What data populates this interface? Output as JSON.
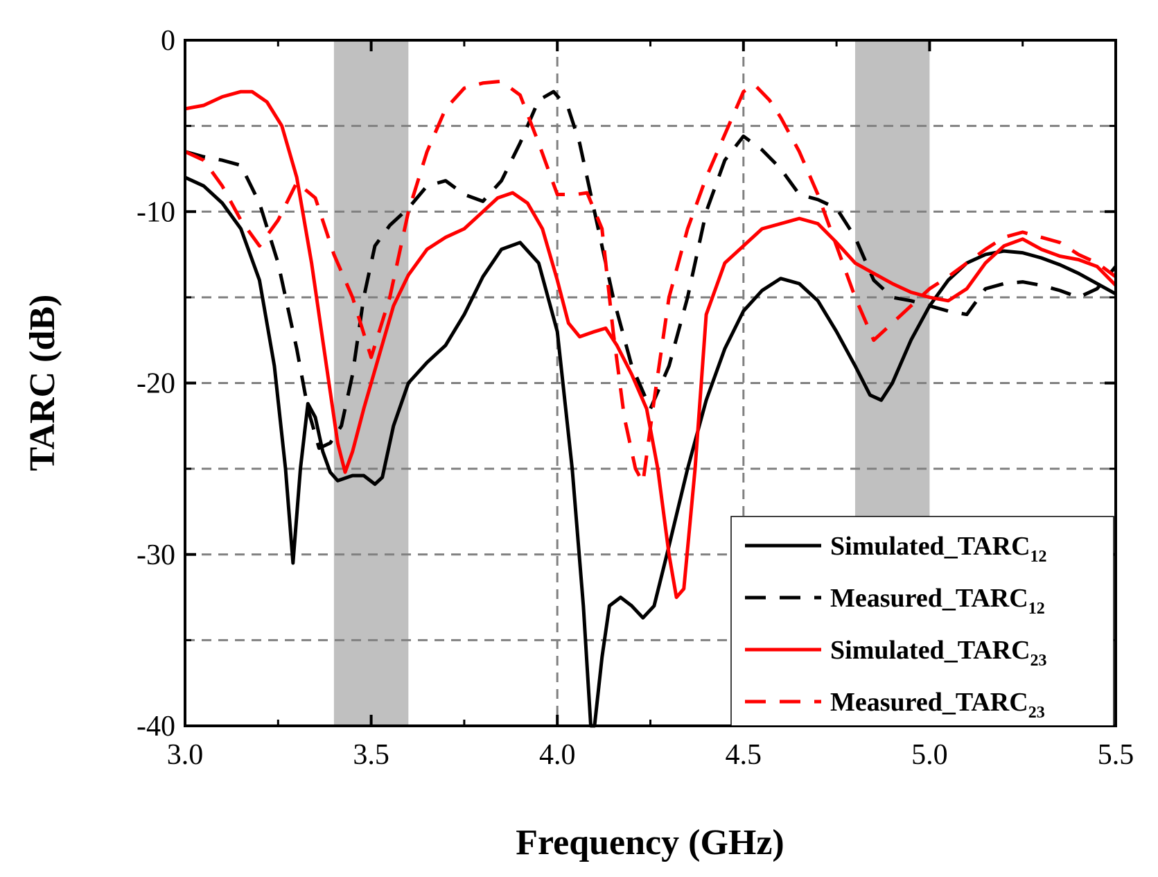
{
  "chart_data": {
    "type": "line",
    "title": "",
    "xlabel": "Frequency (GHz)",
    "ylabel": "TARC (dB)",
    "xlim": [
      3.0,
      5.5
    ],
    "ylim": [
      -40,
      0
    ],
    "x_ticks": [
      3.0,
      3.5,
      4.0,
      4.5,
      5.0,
      5.5
    ],
    "x_tick_labels": [
      "3.0",
      "3.5",
      "4.0",
      "4.5",
      "5.0",
      "5.5"
    ],
    "y_ticks": [
      0,
      -10,
      -20,
      -30,
      -40
    ],
    "y_tick_labels": [
      "0",
      "-10",
      "-20",
      "-30",
      "-40"
    ],
    "grid": "dashed",
    "shaded_bands": [
      [
        3.4,
        3.6
      ],
      [
        4.8,
        5.0
      ]
    ],
    "legend_position": "bottom-right",
    "series": [
      {
        "name": "Simulated_TARC",
        "subscript": "12",
        "color": "#000000",
        "dash": "solid",
        "points": [
          [
            3.0,
            -8
          ],
          [
            3.05,
            -8.5
          ],
          [
            3.1,
            -9.5
          ],
          [
            3.15,
            -11
          ],
          [
            3.2,
            -14
          ],
          [
            3.24,
            -19
          ],
          [
            3.27,
            -25
          ],
          [
            3.29,
            -30.5
          ],
          [
            3.31,
            -25
          ],
          [
            3.33,
            -21.2
          ],
          [
            3.35,
            -22
          ],
          [
            3.37,
            -24
          ],
          [
            3.39,
            -25.2
          ],
          [
            3.41,
            -25.7
          ],
          [
            3.45,
            -25.4
          ],
          [
            3.48,
            -25.4
          ],
          [
            3.51,
            -25.9
          ],
          [
            3.53,
            -25.5
          ],
          [
            3.56,
            -22.5
          ],
          [
            3.6,
            -20
          ],
          [
            3.65,
            -18.8
          ],
          [
            3.7,
            -17.8
          ],
          [
            3.75,
            -16
          ],
          [
            3.8,
            -13.8
          ],
          [
            3.85,
            -12.2
          ],
          [
            3.9,
            -11.8
          ],
          [
            3.95,
            -13
          ],
          [
            4.0,
            -17
          ],
          [
            4.04,
            -25
          ],
          [
            4.07,
            -33
          ],
          [
            4.09,
            -40
          ],
          [
            4.1,
            -40
          ],
          [
            4.12,
            -36
          ],
          [
            4.14,
            -33
          ],
          [
            4.17,
            -32.5
          ],
          [
            4.2,
            -33
          ],
          [
            4.23,
            -33.7
          ],
          [
            4.26,
            -33
          ],
          [
            4.3,
            -29.5
          ],
          [
            4.35,
            -25
          ],
          [
            4.4,
            -21
          ],
          [
            4.45,
            -18
          ],
          [
            4.5,
            -15.8
          ],
          [
            4.55,
            -14.6
          ],
          [
            4.6,
            -13.9
          ],
          [
            4.65,
            -14.2
          ],
          [
            4.7,
            -15.2
          ],
          [
            4.75,
            -17
          ],
          [
            4.8,
            -19
          ],
          [
            4.84,
            -20.7
          ],
          [
            4.87,
            -21
          ],
          [
            4.9,
            -20
          ],
          [
            4.95,
            -17.5
          ],
          [
            5.0,
            -15.5
          ],
          [
            5.05,
            -14
          ],
          [
            5.1,
            -13
          ],
          [
            5.15,
            -12.5
          ],
          [
            5.2,
            -12.3
          ],
          [
            5.25,
            -12.4
          ],
          [
            5.3,
            -12.7
          ],
          [
            5.35,
            -13.1
          ],
          [
            5.4,
            -13.6
          ],
          [
            5.45,
            -14.2
          ],
          [
            5.5,
            -14.8
          ]
        ]
      },
      {
        "name": "Measured_TARC",
        "subscript": "12",
        "color": "#000000",
        "dash": "dashed",
        "points": [
          [
            3.0,
            -6.5
          ],
          [
            3.05,
            -6.8
          ],
          [
            3.1,
            -7
          ],
          [
            3.15,
            -7.3
          ],
          [
            3.2,
            -9.5
          ],
          [
            3.25,
            -13
          ],
          [
            3.3,
            -18
          ],
          [
            3.33,
            -21.5
          ],
          [
            3.36,
            -23.8
          ],
          [
            3.39,
            -23.5
          ],
          [
            3.42,
            -22.5
          ],
          [
            3.45,
            -19.5
          ],
          [
            3.48,
            -15
          ],
          [
            3.51,
            -12
          ],
          [
            3.55,
            -10.8
          ],
          [
            3.6,
            -9.8
          ],
          [
            3.65,
            -8.5
          ],
          [
            3.7,
            -8.2
          ],
          [
            3.75,
            -9
          ],
          [
            3.8,
            -9.4
          ],
          [
            3.85,
            -8.2
          ],
          [
            3.9,
            -6
          ],
          [
            3.95,
            -3.5
          ],
          [
            3.99,
            -3
          ],
          [
            4.03,
            -4
          ],
          [
            4.06,
            -6
          ],
          [
            4.1,
            -10
          ],
          [
            4.15,
            -15
          ],
          [
            4.2,
            -19
          ],
          [
            4.25,
            -21.5
          ],
          [
            4.3,
            -19
          ],
          [
            4.35,
            -15
          ],
          [
            4.4,
            -10
          ],
          [
            4.45,
            -7
          ],
          [
            4.5,
            -5.6
          ],
          [
            4.55,
            -6.4
          ],
          [
            4.6,
            -7.5
          ],
          [
            4.65,
            -9
          ],
          [
            4.7,
            -9.3
          ],
          [
            4.75,
            -9.8
          ],
          [
            4.8,
            -11.5
          ],
          [
            4.85,
            -14
          ],
          [
            4.9,
            -15
          ],
          [
            4.95,
            -15.2
          ],
          [
            5.0,
            -15.5
          ],
          [
            5.05,
            -15.8
          ],
          [
            5.1,
            -16
          ],
          [
            5.15,
            -14.5
          ],
          [
            5.2,
            -14.2
          ],
          [
            5.25,
            -14.1
          ],
          [
            5.3,
            -14.3
          ],
          [
            5.35,
            -14.6
          ],
          [
            5.4,
            -15
          ],
          [
            5.45,
            -14.5
          ],
          [
            5.5,
            -13.2
          ]
        ]
      },
      {
        "name": "Simulated_TARC",
        "subscript": "23",
        "color": "#ff0000",
        "dash": "solid",
        "points": [
          [
            3.0,
            -4
          ],
          [
            3.05,
            -3.8
          ],
          [
            3.1,
            -3.3
          ],
          [
            3.15,
            -3
          ],
          [
            3.18,
            -3
          ],
          [
            3.22,
            -3.6
          ],
          [
            3.26,
            -5
          ],
          [
            3.3,
            -8
          ],
          [
            3.34,
            -13
          ],
          [
            3.38,
            -19
          ],
          [
            3.41,
            -23.5
          ],
          [
            3.43,
            -25.2
          ],
          [
            3.45,
            -24
          ],
          [
            3.48,
            -21.5
          ],
          [
            3.52,
            -18.5
          ],
          [
            3.56,
            -15.5
          ],
          [
            3.6,
            -13.7
          ],
          [
            3.65,
            -12.2
          ],
          [
            3.7,
            -11.5
          ],
          [
            3.75,
            -11
          ],
          [
            3.8,
            -10
          ],
          [
            3.84,
            -9.2
          ],
          [
            3.88,
            -8.9
          ],
          [
            3.92,
            -9.5
          ],
          [
            3.96,
            -11
          ],
          [
            4.0,
            -14
          ],
          [
            4.03,
            -16.5
          ],
          [
            4.06,
            -17.3
          ],
          [
            4.1,
            -17
          ],
          [
            4.13,
            -16.8
          ],
          [
            4.16,
            -17.8
          ],
          [
            4.2,
            -19.5
          ],
          [
            4.24,
            -21.5
          ],
          [
            4.27,
            -25
          ],
          [
            4.3,
            -30
          ],
          [
            4.32,
            -32.5
          ],
          [
            4.34,
            -32
          ],
          [
            4.37,
            -25
          ],
          [
            4.4,
            -16
          ],
          [
            4.45,
            -13
          ],
          [
            4.5,
            -12
          ],
          [
            4.55,
            -11
          ],
          [
            4.6,
            -10.7
          ],
          [
            4.65,
            -10.4
          ],
          [
            4.7,
            -10.7
          ],
          [
            4.75,
            -11.8
          ],
          [
            4.8,
            -13
          ],
          [
            4.85,
            -13.6
          ],
          [
            4.9,
            -14.2
          ],
          [
            4.95,
            -14.7
          ],
          [
            5.0,
            -15
          ],
          [
            5.05,
            -15.2
          ],
          [
            5.1,
            -14.5
          ],
          [
            5.15,
            -13
          ],
          [
            5.2,
            -12
          ],
          [
            5.25,
            -11.6
          ],
          [
            5.3,
            -12.2
          ],
          [
            5.35,
            -12.6
          ],
          [
            5.4,
            -12.8
          ],
          [
            5.45,
            -13.2
          ],
          [
            5.5,
            -14.3
          ]
        ]
      },
      {
        "name": "Measured_TARC",
        "subscript": "23",
        "color": "#ff0000",
        "dash": "dashed",
        "points": [
          [
            3.0,
            -6.5
          ],
          [
            3.05,
            -7
          ],
          [
            3.1,
            -8.5
          ],
          [
            3.15,
            -10.5
          ],
          [
            3.2,
            -12
          ],
          [
            3.25,
            -10.5
          ],
          [
            3.3,
            -8.3
          ],
          [
            3.35,
            -9.2
          ],
          [
            3.4,
            -12.5
          ],
          [
            3.45,
            -15
          ],
          [
            3.5,
            -18.5
          ],
          [
            3.55,
            -15
          ],
          [
            3.6,
            -10
          ],
          [
            3.65,
            -6.5
          ],
          [
            3.7,
            -4
          ],
          [
            3.75,
            -2.8
          ],
          [
            3.8,
            -2.5
          ],
          [
            3.85,
            -2.4
          ],
          [
            3.9,
            -3.2
          ],
          [
            3.95,
            -6
          ],
          [
            4.0,
            -9
          ],
          [
            4.05,
            -9
          ],
          [
            4.08,
            -8.9
          ],
          [
            4.12,
            -11
          ],
          [
            4.15,
            -17
          ],
          [
            4.18,
            -22
          ],
          [
            4.21,
            -25
          ],
          [
            4.23,
            -25.8
          ],
          [
            4.26,
            -21
          ],
          [
            4.3,
            -15
          ],
          [
            4.35,
            -11
          ],
          [
            4.4,
            -8
          ],
          [
            4.45,
            -5.5
          ],
          [
            4.5,
            -3
          ],
          [
            4.53,
            -2.6
          ],
          [
            4.57,
            -3.5
          ],
          [
            4.6,
            -4.5
          ],
          [
            4.65,
            -6.5
          ],
          [
            4.7,
            -9
          ],
          [
            4.75,
            -12
          ],
          [
            4.8,
            -15
          ],
          [
            4.85,
            -17.5
          ],
          [
            4.9,
            -16.5
          ],
          [
            4.95,
            -15.5
          ],
          [
            5.0,
            -14.5
          ],
          [
            5.05,
            -13.8
          ],
          [
            5.1,
            -13
          ],
          [
            5.15,
            -12.2
          ],
          [
            5.2,
            -11.5
          ],
          [
            5.25,
            -11.2
          ],
          [
            5.3,
            -11.5
          ],
          [
            5.35,
            -11.8
          ],
          [
            5.4,
            -12.5
          ],
          [
            5.45,
            -13
          ],
          [
            5.5,
            -13.8
          ]
        ]
      }
    ]
  }
}
